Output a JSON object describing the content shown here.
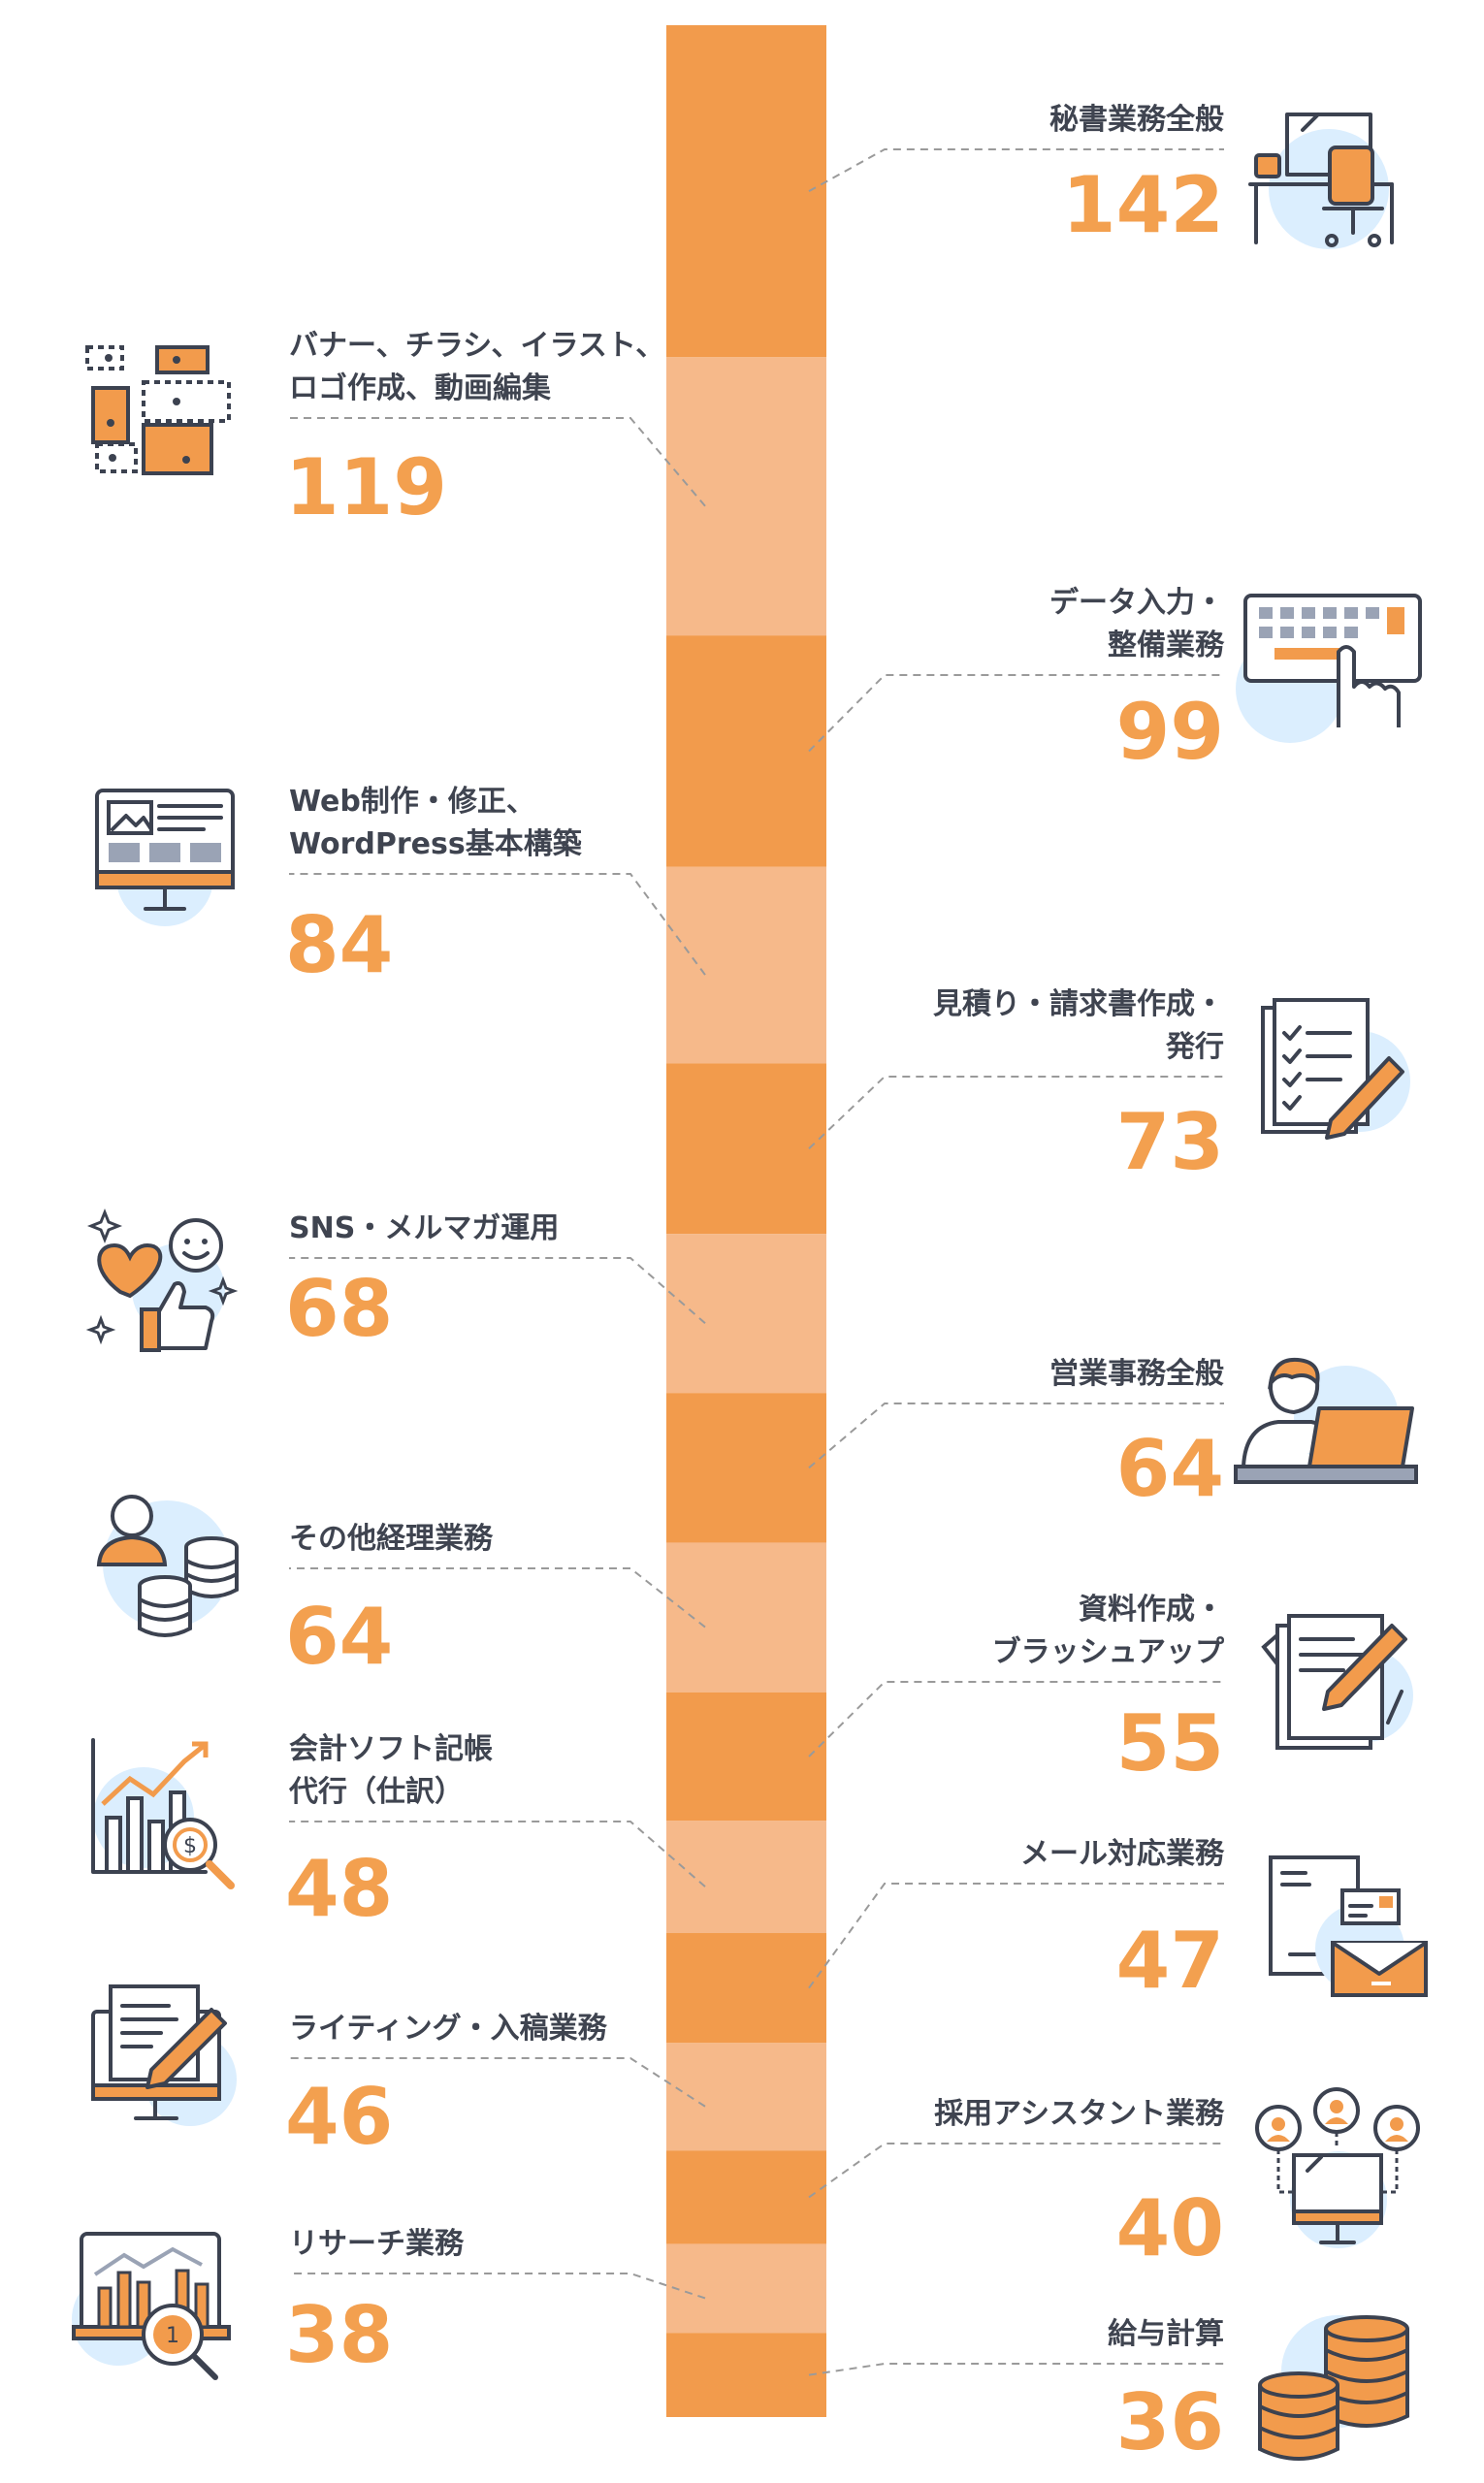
{
  "colors": {
    "dark": "#f29b4c",
    "light": "#f6b98a",
    "accent": "#f3a04f",
    "line": "#9a9a9a",
    "blob": "#dbeefe",
    "ink": "#3c4250"
  },
  "chart_data": {
    "type": "bar",
    "note": "stacked single bar; segments in descending order",
    "categories": [
      "秘書業務全般",
      "バナー、チラシ、イラスト、ロゴ作成、動画編集",
      "データ入力・整備業務",
      "Web制作・修正、WordPress基本構築",
      "見積り・請求書作成・発行",
      "SNS・メルマガ運用",
      "営業事務全般",
      "その他経理業務",
      "資料作成・ブラッシュアップ",
      "会計ソフト記帳代行（仕訳）",
      "メール対応業務",
      "ライティング・入稿業務",
      "採用アシスタント業務",
      "リサーチ業務",
      "給与計算"
    ],
    "values": [
      142,
      119,
      99,
      84,
      73,
      68,
      64,
      64,
      55,
      48,
      47,
      46,
      40,
      38,
      36
    ],
    "items": [
      {
        "label": "秘書業務全般",
        "value": "142",
        "side": "right",
        "icon": "office-desk-icon"
      },
      {
        "label": "バナー、チラシ、イラスト、\nロゴ作成、動画編集",
        "value": "119",
        "side": "left",
        "icon": "layout-design-icon"
      },
      {
        "label": "データ入力・\n整備業務",
        "value": "99",
        "side": "right",
        "icon": "keyboard-typing-icon"
      },
      {
        "label": "Web制作・修正、\nWordPress基本構築",
        "value": "84",
        "side": "left",
        "icon": "web-monitor-icon"
      },
      {
        "label": "見積り・請求書作成・\n発行",
        "value": "73",
        "side": "right",
        "icon": "checklist-pen-icon"
      },
      {
        "label": "SNS・メルマガ運用",
        "value": "68",
        "side": "left",
        "icon": "social-like-icon"
      },
      {
        "label": "営業事務全般",
        "value": "64",
        "side": "right",
        "icon": "person-laptop-icon"
      },
      {
        "label": "その他経理業務",
        "value": "64",
        "side": "left",
        "icon": "person-coins-icon"
      },
      {
        "label": "資料作成・\nブラッシュアップ",
        "value": "55",
        "side": "right",
        "icon": "document-pen-icon"
      },
      {
        "label": "会計ソフト記帳\n代行（仕訳）",
        "value": "48",
        "side": "left",
        "icon": "chart-magnifier-dollar-icon"
      },
      {
        "label": "メール対応業務",
        "value": "47",
        "side": "right",
        "icon": "mail-envelope-icon"
      },
      {
        "label": "ライティング・入稿業務",
        "value": "46",
        "side": "left",
        "icon": "monitor-writing-icon"
      },
      {
        "label": "採用アシスタント業務",
        "value": "40",
        "side": "right",
        "icon": "recruitment-network-icon"
      },
      {
        "label": "リサーチ業務",
        "value": "38",
        "side": "left",
        "icon": "research-chart-icon"
      },
      {
        "label": "給与計算",
        "value": "36",
        "side": "right",
        "icon": "coin-stacks-icon"
      }
    ]
  }
}
